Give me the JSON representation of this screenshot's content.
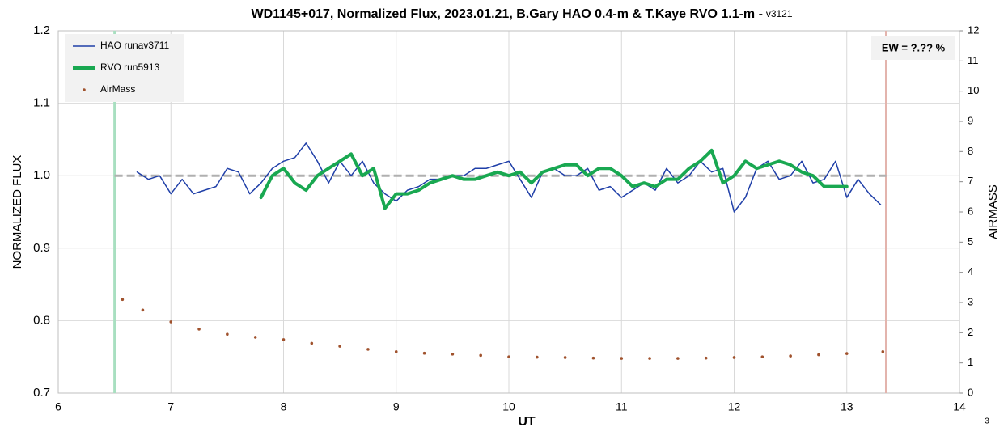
{
  "chart_data": {
    "type": "line",
    "title": "WD1145+017, Normalized Flux, 2023.01.21, B.Gary HAO 0.4-m & T.Kaye RVO 1.1-m -",
    "subtitle": "v3121",
    "xlabel": "UT",
    "ylabel": "NORMALIZED FLUX",
    "y2label": "AIRMASS",
    "annotation": "EW = ?.?? %",
    "page_number": "3",
    "xlim": [
      6,
      14
    ],
    "xticks": [
      6,
      7,
      8,
      9,
      10,
      11,
      12,
      13,
      14
    ],
    "ylim": [
      0.7,
      1.2
    ],
    "yticks": [
      0.7,
      0.8,
      0.9,
      {
        "value": 1,
        "label": "1.0"
      },
      1.1,
      1.2
    ],
    "y2lim": [
      0,
      12
    ],
    "y2ticks": [
      0,
      1,
      2,
      3,
      4,
      5,
      6,
      7,
      8,
      9,
      10,
      11,
      12
    ],
    "grid": true,
    "legend": "upper left",
    "vlines": [
      {
        "x": 6.5,
        "color": "#a8dfc0"
      },
      {
        "x": 13.35,
        "color": "#e3b4ad"
      }
    ],
    "hlines": [
      {
        "y": 1,
        "color": "#b0b0b0"
      }
    ],
    "series": [
      {
        "name": "HAO runav3711",
        "color": "#1f3fa8",
        "style": "line",
        "linewidth": 1.5,
        "x": [
          6.7,
          6.8,
          6.9,
          7.0,
          7.1,
          7.2,
          7.3,
          7.4,
          7.5,
          7.6,
          7.7,
          7.8,
          7.9,
          8.0,
          8.1,
          8.2,
          8.3,
          8.4,
          8.5,
          8.6,
          8.7,
          8.8,
          8.9,
          9.0,
          9.1,
          9.2,
          9.3,
          9.4,
          9.5,
          9.6,
          9.7,
          9.8,
          9.9,
          10.0,
          10.1,
          10.2,
          10.3,
          10.4,
          10.5,
          10.6,
          10.7,
          10.8,
          10.9,
          11.0,
          11.1,
          11.2,
          11.3,
          11.4,
          11.5,
          11.6,
          11.7,
          11.8,
          11.9,
          12.0,
          12.1,
          12.2,
          12.3,
          12.4,
          12.5,
          12.6,
          12.7,
          12.8,
          12.9,
          13.0,
          13.1,
          13.2,
          13.3
        ],
        "values": [
          1.005,
          0.995,
          1.0,
          0.975,
          0.995,
          0.975,
          0.98,
          0.985,
          1.01,
          1.005,
          0.975,
          0.99,
          1.01,
          1.02,
          1.025,
          1.045,
          1.02,
          0.99,
          1.02,
          1.0,
          1.02,
          0.99,
          0.975,
          0.965,
          0.98,
          0.985,
          0.995,
          0.995,
          1.0,
          1.0,
          1.01,
          1.01,
          1.015,
          1.02,
          0.995,
          0.97,
          1.005,
          1.01,
          1.0,
          1.0,
          1.01,
          0.98,
          0.985,
          0.97,
          0.98,
          0.99,
          0.98,
          1.01,
          0.99,
          1.0,
          1.02,
          1.005,
          1.01,
          0.95,
          0.97,
          1.01,
          1.02,
          0.995,
          1.0,
          1.02,
          0.99,
          0.995,
          1.02,
          0.97,
          0.995,
          0.975,
          0.96
        ]
      },
      {
        "name": "RVO run5913",
        "color": "#19a851",
        "style": "line",
        "linewidth": 4,
        "x": [
          7.8,
          7.9,
          8.0,
          8.1,
          8.2,
          8.3,
          8.4,
          8.5,
          8.6,
          8.7,
          8.8,
          8.9,
          9.0,
          9.1,
          9.2,
          9.3,
          9.4,
          9.5,
          9.6,
          9.7,
          9.8,
          9.9,
          10.0,
          10.1,
          10.2,
          10.3,
          10.4,
          10.5,
          10.6,
          10.7,
          10.8,
          10.9,
          11.0,
          11.1,
          11.2,
          11.3,
          11.4,
          11.5,
          11.6,
          11.7,
          11.8,
          11.9,
          12.0,
          12.1,
          12.2,
          12.3,
          12.4,
          12.5,
          12.6,
          12.7,
          12.8,
          12.9,
          13.0
        ],
        "values": [
          0.97,
          1.0,
          1.01,
          0.99,
          0.98,
          1.0,
          1.01,
          1.02,
          1.03,
          1.0,
          1.01,
          0.955,
          0.975,
          0.975,
          0.98,
          0.99,
          0.995,
          1.0,
          0.995,
          0.995,
          1.0,
          1.005,
          1.0,
          1.005,
          0.99,
          1.005,
          1.01,
          1.015,
          1.015,
          1.0,
          1.01,
          1.01,
          1.0,
          0.985,
          0.99,
          0.985,
          0.995,
          0.995,
          1.01,
          1.02,
          1.035,
          0.99,
          1.0,
          1.02,
          1.01,
          1.015,
          1.02,
          1.015,
          1.005,
          1.0,
          0.985,
          0.985,
          0.985
        ]
      },
      {
        "name": "AirMass",
        "color": "#a0522d",
        "style": "markers",
        "axis": "y2",
        "x": [
          6.57,
          6.75,
          7.0,
          7.25,
          7.5,
          7.75,
          8.0,
          8.25,
          8.5,
          8.75,
          9.0,
          9.25,
          9.5,
          9.75,
          10.0,
          10.25,
          10.5,
          10.75,
          11.0,
          11.25,
          11.5,
          11.75,
          12.0,
          12.25,
          12.5,
          12.75,
          13.0,
          13.32
        ],
        "values": [
          3.1,
          2.75,
          2.36,
          2.12,
          1.95,
          1.85,
          1.77,
          1.65,
          1.55,
          1.45,
          1.37,
          1.32,
          1.29,
          1.25,
          1.2,
          1.19,
          1.18,
          1.16,
          1.15,
          1.15,
          1.15,
          1.16,
          1.18,
          1.2,
          1.23,
          1.27,
          1.31,
          1.37
        ]
      }
    ]
  }
}
